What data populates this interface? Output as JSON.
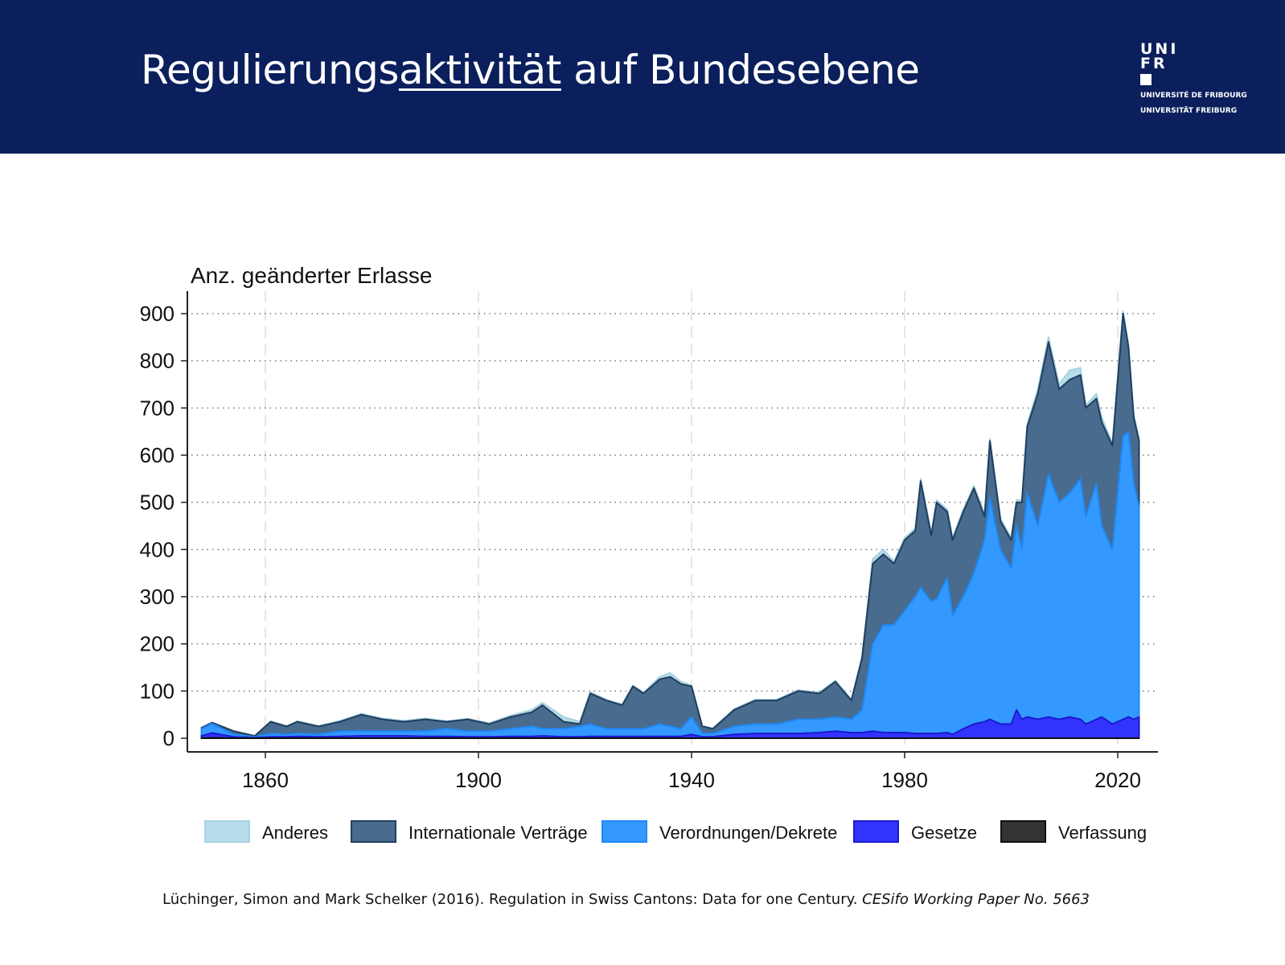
{
  "header": {
    "title_part1": "Regulierungs",
    "title_underlined": "aktivität",
    "title_part2": " auf Bundesebene",
    "background_color": "#0b1f5c"
  },
  "logo": {
    "line1": "UNI",
    "line2": "FR",
    "sub1": "UNIVERSITÉ DE FRIBOURG",
    "sub2": "UNIVERSITÄT FREIBURG"
  },
  "citation": {
    "text": "Lüchinger, Simon and Mark Schelker (2016). Regulation in Swiss Cantons: Data for one Century. ",
    "italic": "CESifo Working Paper No. 5663"
  },
  "chart_data": {
    "type": "area",
    "stacked": true,
    "title": "Anz. geänderter Erlasse",
    "xlabel": "",
    "ylabel": "",
    "xlim": [
      1845,
      2027
    ],
    "ylim": [
      0,
      900
    ],
    "xticks": [
      1860,
      1900,
      1940,
      1980,
      2020
    ],
    "yticks": [
      0,
      100,
      200,
      300,
      400,
      500,
      600,
      700,
      800,
      900
    ],
    "grid": {
      "x": "dashed",
      "y": "dotted"
    },
    "legend_placement": "bottom",
    "x": [
      1848,
      1850,
      1854,
      1858,
      1861,
      1864,
      1866,
      1870,
      1874,
      1878,
      1882,
      1886,
      1890,
      1894,
      1898,
      1902,
      1906,
      1910,
      1912,
      1916,
      1919,
      1921,
      1924,
      1927,
      1929,
      1931,
      1934,
      1936,
      1938,
      1940,
      1942,
      1944,
      1948,
      1952,
      1956,
      1960,
      1964,
      1967,
      1970,
      1972,
      1974,
      1976,
      1978,
      1980,
      1982,
      1983,
      1985,
      1986,
      1988,
      1989,
      1991,
      1993,
      1995,
      1996,
      1998,
      2000,
      2001,
      2002,
      2003,
      2005,
      2007,
      2009,
      2011,
      2013,
      2014,
      2016,
      2017,
      2019,
      2021,
      2022,
      2023,
      2024
    ],
    "series": [
      {
        "name": "Verfassung",
        "color": "#333333",
        "values": [
          0,
          1,
          0,
          0,
          0,
          0,
          0,
          0,
          0,
          0,
          0,
          0,
          0,
          0,
          0,
          0,
          0,
          0,
          0,
          0,
          0,
          0,
          0,
          0,
          0,
          0,
          0,
          0,
          0,
          0,
          0,
          0,
          0,
          0,
          0,
          0,
          0,
          0,
          0,
          0,
          0,
          0,
          0,
          0,
          0,
          0,
          0,
          0,
          0,
          0,
          0,
          0,
          0,
          0,
          0,
          0,
          0,
          0,
          0,
          0,
          0,
          0,
          0,
          0,
          0,
          0,
          0,
          0,
          0,
          0,
          0,
          0
        ]
      },
      {
        "name": "Gesetze",
        "color": "#3333ff",
        "values": [
          5,
          10,
          3,
          1,
          3,
          3,
          4,
          3,
          4,
          5,
          5,
          5,
          4,
          4,
          3,
          3,
          4,
          4,
          5,
          3,
          3,
          4,
          4,
          4,
          4,
          4,
          4,
          4,
          4,
          8,
          3,
          3,
          8,
          10,
          10,
          10,
          12,
          15,
          12,
          12,
          15,
          12,
          12,
          12,
          10,
          10,
          10,
          10,
          12,
          8,
          20,
          30,
          35,
          40,
          30,
          30,
          60,
          40,
          45,
          40,
          45,
          40,
          45,
          40,
          30,
          40,
          45,
          30,
          40,
          45,
          40,
          45
        ]
      },
      {
        "name": "Verordnungen/Dekrete",
        "color": "#3399ff",
        "values": [
          15,
          20,
          5,
          2,
          7,
          5,
          6,
          5,
          11,
          10,
          10,
          10,
          11,
          16,
          12,
          12,
          16,
          21,
          15,
          17,
          22,
          26,
          16,
          16,
          16,
          16,
          26,
          21,
          16,
          37,
          7,
          7,
          17,
          20,
          20,
          30,
          28,
          30,
          28,
          48,
          185,
          228,
          228,
          258,
          290,
          310,
          280,
          285,
          328,
          252,
          280,
          320,
          385,
          470,
          370,
          330,
          390,
          360,
          475,
          410,
          515,
          460,
          475,
          510,
          440,
          500,
          405,
          370,
          600,
          605,
          500,
          445
        ]
      },
      {
        "name": "Internationale Verträge",
        "color": "#496b8d",
        "values": [
          2,
          2,
          7,
          2,
          25,
          17,
          25,
          17,
          20,
          35,
          25,
          20,
          25,
          15,
          25,
          15,
          25,
          30,
          50,
          15,
          5,
          65,
          60,
          50,
          90,
          75,
          95,
          105,
          95,
          65,
          15,
          10,
          35,
          50,
          50,
          60,
          55,
          75,
          40,
          110,
          170,
          150,
          130,
          150,
          140,
          225,
          140,
          205,
          140,
          160,
          180,
          180,
          50,
          120,
          60,
          60,
          50,
          100,
          140,
          280,
          280,
          240,
          240,
          220,
          230,
          180,
          220,
          220,
          260,
          180,
          140,
          140
        ]
      },
      {
        "name": "Anderes",
        "color": "#b7dcea",
        "values": [
          0,
          0,
          1,
          0,
          1,
          1,
          1,
          1,
          2,
          2,
          2,
          2,
          2,
          1,
          1,
          2,
          3,
          5,
          5,
          10,
          5,
          3,
          2,
          2,
          2,
          2,
          5,
          8,
          5,
          2,
          2,
          1,
          2,
          2,
          2,
          2,
          2,
          2,
          2,
          2,
          10,
          10,
          5,
          5,
          5,
          5,
          5,
          5,
          5,
          5,
          5,
          5,
          5,
          5,
          5,
          5,
          5,
          5,
          5,
          10,
          10,
          10,
          20,
          15,
          5,
          10,
          10,
          5,
          5,
          5,
          5,
          5
        ]
      }
    ],
    "legend": [
      "Anderes",
      "Internationale Verträge",
      "Verordnungen/Dekrete",
      "Gesetze",
      "Verfassung"
    ]
  }
}
